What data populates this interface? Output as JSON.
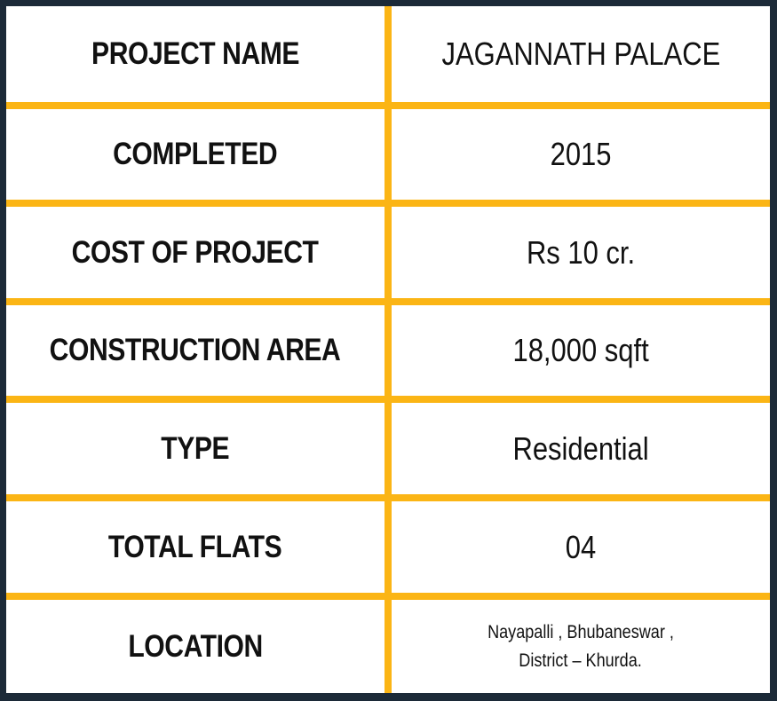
{
  "colors": {
    "border": "#1c2a38",
    "grid": "#fbb515",
    "background": "#ffffff"
  },
  "rows": [
    {
      "label": "PROJECT NAME",
      "value": "JAGANNATH PALACE"
    },
    {
      "label": "COMPLETED",
      "value": "2015"
    },
    {
      "label": "COST OF PROJECT",
      "value": "Rs 10 cr."
    },
    {
      "label": "CONSTRUCTION AREA",
      "value": "18,000 sqft"
    },
    {
      "label": "TYPE",
      "value": "Residential"
    },
    {
      "label": "TOTAL FLATS",
      "value": "04"
    },
    {
      "label": "LOCATION",
      "value_line1": "Nayapalli , Bhubaneswar ,",
      "value_line2": "District – Khurda."
    }
  ]
}
